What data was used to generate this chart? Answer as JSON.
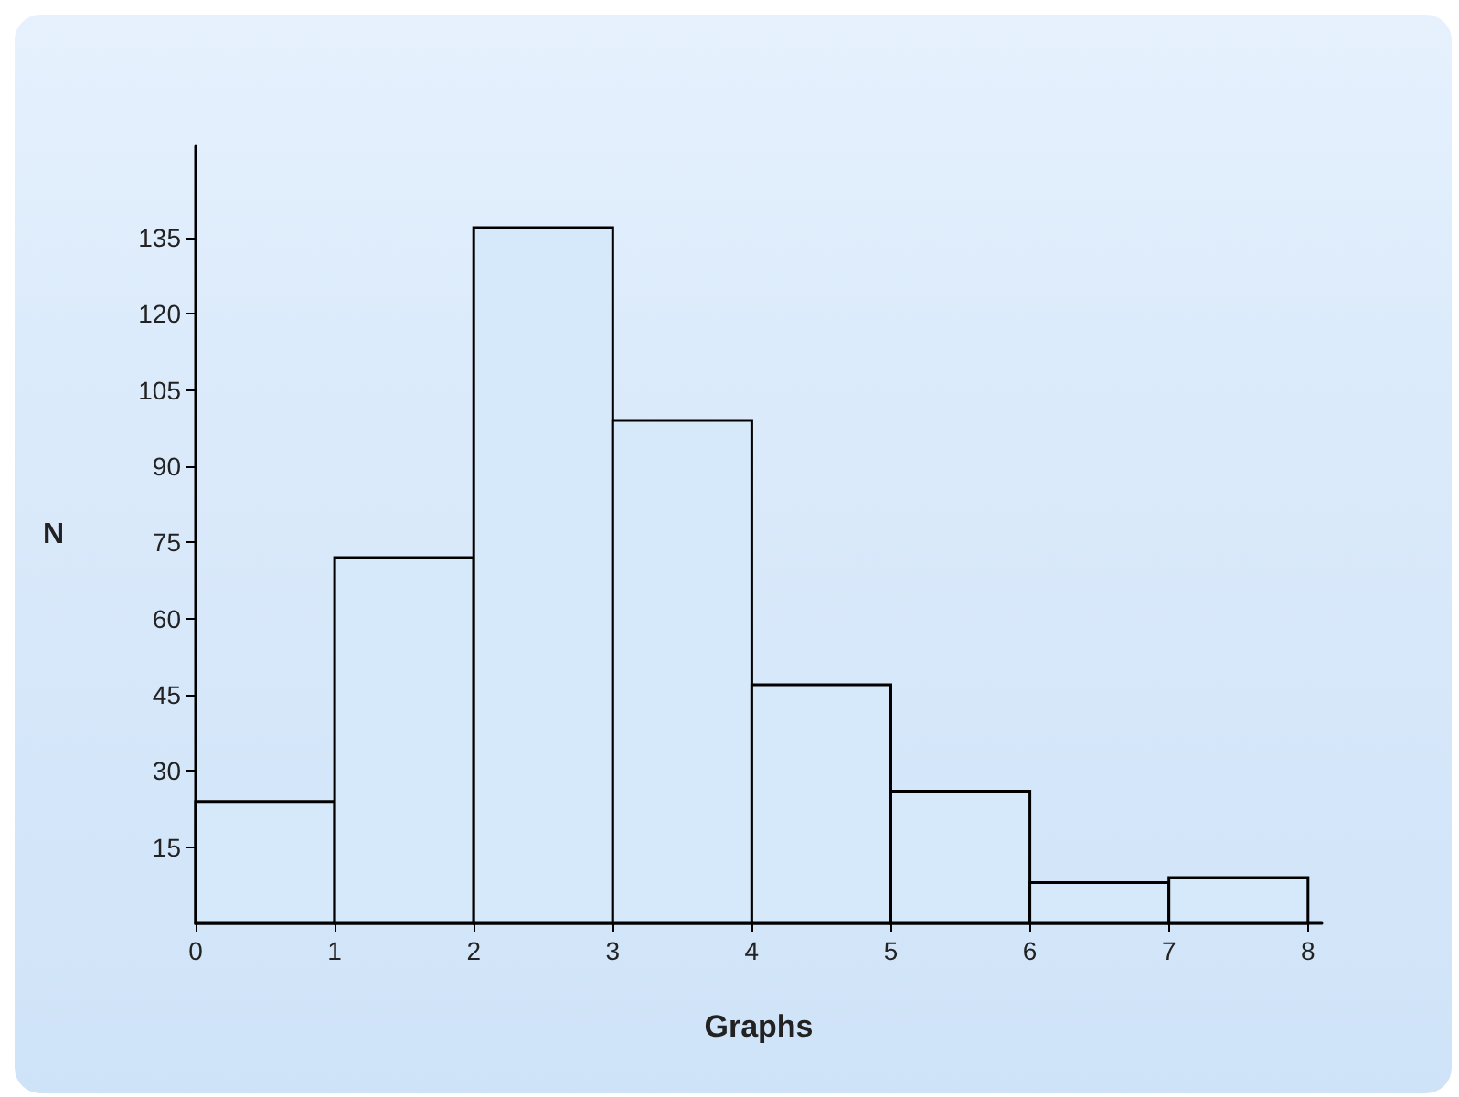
{
  "chart_data": {
    "type": "histogram",
    "xlabel": "Graphs",
    "ylabel": "N",
    "bins": [
      0,
      1,
      2,
      3,
      4,
      5,
      6,
      7,
      8
    ],
    "values": [
      24,
      72,
      137,
      99,
      47,
      26,
      8,
      9
    ],
    "color": "#d6e9fb",
    "xlim": [
      0,
      8.1
    ],
    "ylim": [
      0,
      153
    ],
    "xticks": [
      0,
      1,
      2,
      3,
      4,
      5,
      6,
      7,
      8
    ],
    "yticks": [
      15,
      30,
      45,
      60,
      75,
      90,
      105,
      120,
      135
    ],
    "grid": false
  }
}
